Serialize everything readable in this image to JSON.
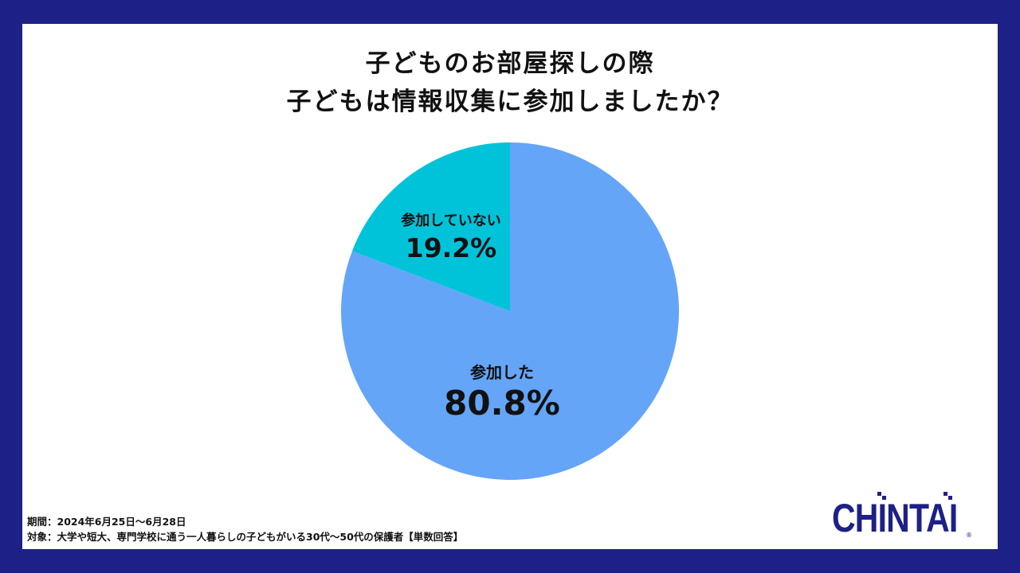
{
  "title_line1": "子どものお部屋探しの際",
  "title_line2": "子どもは情報収集に参加しましたか？",
  "chart_data": {
    "type": "pie",
    "start": "12 o'clock, clockwise",
    "slices": [
      {
        "label": "参加した",
        "value": 80.8,
        "display": "80.8%",
        "color": "#64a5f8"
      },
      {
        "label": "参加していない",
        "value": 19.2,
        "display": "19.2%",
        "color": "#00c3d9"
      }
    ]
  },
  "footer": {
    "period": "期間：2024年6月25日～6月28日",
    "target": "対象：大学や短大、専門学校に通う一人暮らしの子どもがいる30代～50代の保護者【単数回答】"
  },
  "logo": {
    "text": "CHINTAI",
    "mark": "®"
  }
}
